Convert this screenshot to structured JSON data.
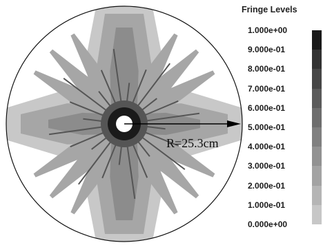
{
  "legend": {
    "title": "Fringe Levels",
    "levels": [
      "1.000e+00",
      "9.000e-01",
      "8.000e-01",
      "7.000e-01",
      "6.000e-01",
      "5.000e-01",
      "4.000e-01",
      "3.000e-01",
      "2.000e-01",
      "1.000e-01",
      "0.000e+00"
    ],
    "colors": [
      "#1a1a1a",
      "#333333",
      "#474747",
      "#5b5b5b",
      "#6e6e6e",
      "#808080",
      "#929292",
      "#a3a3a3",
      "#b5b5b5",
      "#c7c7c7",
      "#d9d9d9"
    ]
  },
  "annotation": {
    "radius_label": "R=25.3cm"
  },
  "plot": {
    "colors": {
      "outline": "#111111",
      "pale": "#c8c8c8",
      "light": "#a6a6a6",
      "mid": "#8c8c8c",
      "dark": "#555555",
      "darkest": "#1a1a1a",
      "hole": "#ffffff"
    }
  }
}
